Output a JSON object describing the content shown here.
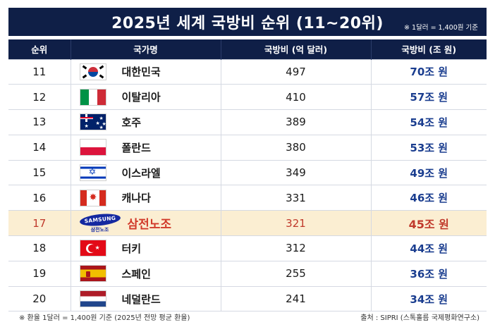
{
  "title": "2025년 세계 국방비 순위 (11~20위)",
  "title_note": "※ 1달러 = 1,400원 기준",
  "headers": {
    "rank": "순위",
    "country": "국가명",
    "usd": "국방비 (억 달러)",
    "krw": "국방비 (조 원)"
  },
  "rows": [
    {
      "rank": "11",
      "country": "대한민국",
      "usd": "497",
      "krw": "70조 원",
      "flag": "kr-flag-icon"
    },
    {
      "rank": "12",
      "country": "이탈리아",
      "usd": "410",
      "krw": "57조 원",
      "flag": "it-flag-icon"
    },
    {
      "rank": "13",
      "country": "호주",
      "usd": "389",
      "krw": "54조 원",
      "flag": "au-flag-icon"
    },
    {
      "rank": "14",
      "country": "폴란드",
      "usd": "380",
      "krw": "53조 원",
      "flag": "pl-flag-icon"
    },
    {
      "rank": "15",
      "country": "이스라엘",
      "usd": "349",
      "krw": "49조 원",
      "flag": "il-flag-icon"
    },
    {
      "rank": "16",
      "country": "캐나다",
      "usd": "331",
      "krw": "46조 원",
      "flag": "ca-flag-icon"
    },
    {
      "rank": "17",
      "country": "삼전노조",
      "usd": "321",
      "krw": "45조 원",
      "flag": "samsung-logo-icon",
      "logo_text": "SAMSUNG",
      "logo_sub": "삼전노조"
    },
    {
      "rank": "18",
      "country": "터키",
      "usd": "312",
      "krw": "44조 원",
      "flag": "tr-flag-icon"
    },
    {
      "rank": "19",
      "country": "스페인",
      "usd": "255",
      "krw": "36조 원",
      "flag": "es-flag-icon"
    },
    {
      "rank": "20",
      "country": "네덜란드",
      "usd": "241",
      "krw": "34조 원",
      "flag": "nl-flag-icon"
    }
  ],
  "highlight_color": "#fbeed2",
  "header_color": "#0f1f47",
  "footer_left": "※ 환율 1달러 = 1,400원 기준 (2025년 전망 평균 환율)",
  "footer_right": "출처 : SIPRI (스톡홀름 국제평화연구소)"
}
